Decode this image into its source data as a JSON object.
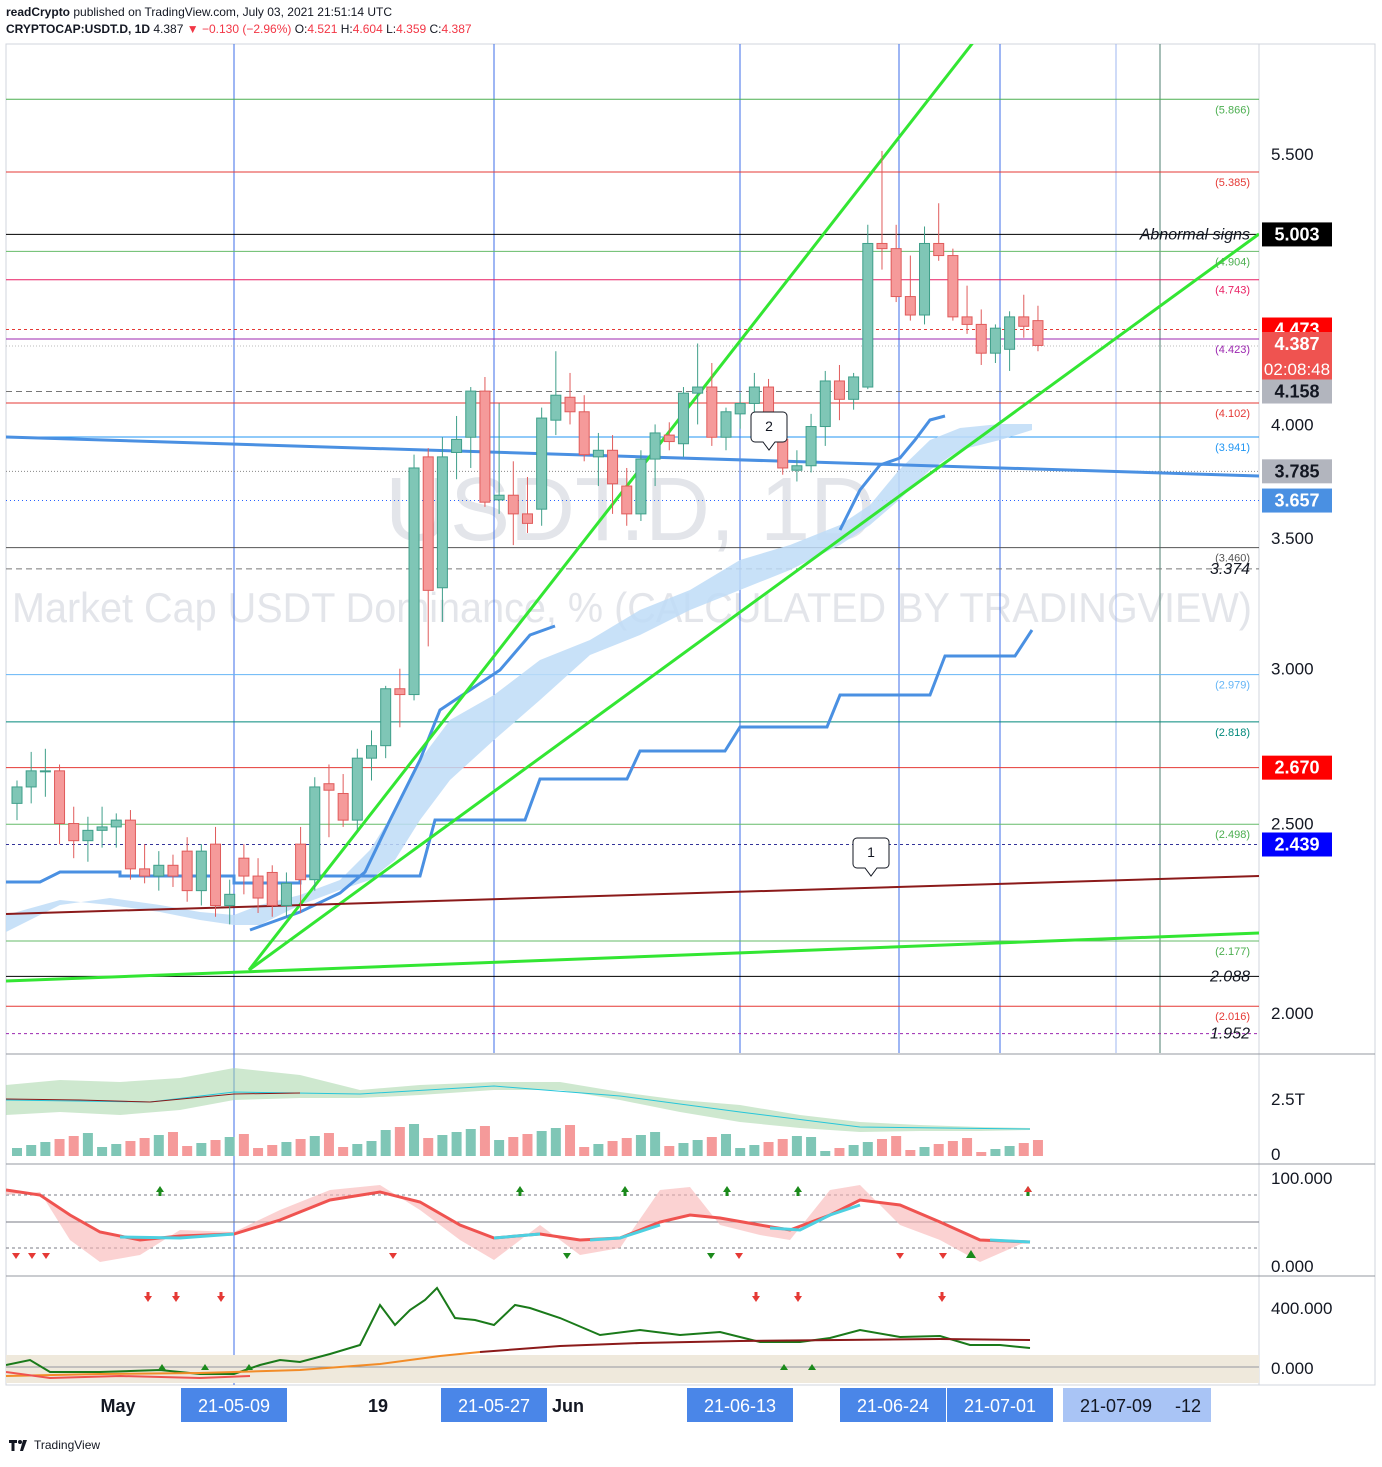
{
  "header": {
    "publisher": "readCrypto",
    "published_text": "published on TradingView.com, July 03, 2021 21:51:14 UTC",
    "symbol": "CRYPTOCAP:USDT.D, 1D",
    "last": "4.387",
    "change": "▼ −0.130 (−2.96%)",
    "ohlc": {
      "o_label": "O:",
      "o": "4.521",
      "h_label": "H:",
      "h": "4.604",
      "l_label": "L:",
      "l": "4.359",
      "c_label": "C:",
      "c": "4.387"
    }
  },
  "watermark": {
    "symbol": "USDT.D, 1D",
    "description": "Market Cap USDT Dominance, % (CALCULATED BY TRADINGVIEW)"
  },
  "footer": {
    "brand": "TradingView"
  },
  "colors": {
    "up": "#7fc6b6",
    "down": "#f59a9a",
    "cloud": "#bedcf7",
    "baseline": "#4a90e2",
    "trend_green": "#33e633",
    "trend_darkred": "#8b1a1a",
    "axis_badge_red": "#ff0000",
    "axis_badge_blue": "#0000ff"
  },
  "chart_data": {
    "type": "candlestick",
    "price_axis": {
      "scale": "log",
      "ticks": [
        "5.500",
        "5.003",
        "4.000",
        "3.500",
        "3.000",
        "2.500",
        "2.000"
      ],
      "ylim": [
        1.85,
        6.2
      ]
    },
    "x_axis": {
      "labels": [
        "May",
        "21-05-09",
        "19",
        "21-05-27",
        "Jun",
        "21-06-13",
        "21-06-24",
        "21-07-01",
        "21-07-09",
        "-12"
      ],
      "highlighted": [
        "21-05-09",
        "21-05-27",
        "21-06-13",
        "21-06-24",
        "21-07-01"
      ],
      "light_highlighted": [
        "21-07-09",
        "-12"
      ]
    },
    "price_badges": [
      {
        "label": "5.003",
        "value": 5.003,
        "bg": "#000000",
        "fg": "#ffffff"
      },
      {
        "label": "4.473",
        "value": 4.473,
        "bg": "#ff0000",
        "fg": "#ffffff"
      },
      {
        "label": "4.387",
        "value": 4.387,
        "bg": "#ef5350",
        "fg": "#ffffff",
        "sub": "02:08:48"
      },
      {
        "label": "4.158",
        "value": 4.158,
        "bg": "#b2b5be",
        "fg": "#131722"
      },
      {
        "label": "3.785",
        "value": 3.785,
        "bg": "#b2b5be",
        "fg": "#131722"
      },
      {
        "label": "3.657",
        "value": 3.657,
        "bg": "#4a90e2",
        "fg": "#ffffff"
      },
      {
        "label": "2.670",
        "value": 2.67,
        "bg": "#ff0000",
        "fg": "#ffffff"
      },
      {
        "label": "2.439",
        "value": 2.439,
        "bg": "#0000ff",
        "fg": "#ffffff"
      }
    ],
    "level_labels": [
      {
        "label": "(5.866)",
        "value": 5.866,
        "color": "#4caf50"
      },
      {
        "label": "(5.385)",
        "value": 5.385,
        "color": "#e53935"
      },
      {
        "label": "(4.904)",
        "value": 4.904,
        "color": "#4caf50"
      },
      {
        "label": "(4.743)",
        "value": 4.743,
        "color": "#e91e63"
      },
      {
        "label": "(4.423)",
        "value": 4.423,
        "color": "#9c27b0"
      },
      {
        "label": "(4.102)",
        "value": 4.102,
        "color": "#e53935"
      },
      {
        "label": "(3.941)",
        "value": 3.941,
        "color": "#2196f3"
      },
      {
        "label": "(3.460)",
        "value": 3.46,
        "color": "#555555"
      },
      {
        "label": "(2.979)",
        "value": 2.979,
        "color": "#64b5f6"
      },
      {
        "label": "(2.818)",
        "value": 2.818,
        "color": "#00897b"
      },
      {
        "label": "(2.498)",
        "value": 2.498,
        "color": "#4caf50"
      },
      {
        "label": "(2.177)",
        "value": 2.177,
        "color": "#4caf50"
      },
      {
        "label": "(2.016)",
        "value": 2.016,
        "color": "#e53935"
      }
    ],
    "italic_levels": [
      {
        "label": "3.374",
        "value": 3.374
      },
      {
        "label": "2.088",
        "value": 2.088
      },
      {
        "label": "1.952",
        "value": 1.952
      }
    ],
    "annotation_text": "Abnormal signs",
    "callouts": [
      "2",
      "1"
    ],
    "candles": [
      [
        2.56,
        2.63,
        2.51,
        2.61
      ],
      [
        2.61,
        2.72,
        2.56,
        2.66
      ],
      [
        2.66,
        2.73,
        2.58,
        2.66
      ],
      [
        2.66,
        2.68,
        2.44,
        2.5
      ],
      [
        2.5,
        2.55,
        2.4,
        2.45
      ],
      [
        2.45,
        2.52,
        2.39,
        2.48
      ],
      [
        2.48,
        2.55,
        2.43,
        2.49
      ],
      [
        2.49,
        2.53,
        2.43,
        2.51
      ],
      [
        2.51,
        2.54,
        2.34,
        2.37
      ],
      [
        2.37,
        2.44,
        2.33,
        2.35
      ],
      [
        2.35,
        2.42,
        2.31,
        2.38
      ],
      [
        2.38,
        2.41,
        2.32,
        2.35
      ],
      [
        2.42,
        2.46,
        2.28,
        2.31
      ],
      [
        2.31,
        2.44,
        2.27,
        2.42
      ],
      [
        2.44,
        2.49,
        2.24,
        2.27
      ],
      [
        2.27,
        2.34,
        2.22,
        2.3
      ],
      [
        2.4,
        2.44,
        2.3,
        2.35
      ],
      [
        2.35,
        2.4,
        2.25,
        2.29
      ],
      [
        2.36,
        2.38,
        2.24,
        2.27
      ],
      [
        2.27,
        2.36,
        2.24,
        2.33
      ],
      [
        2.44,
        2.49,
        2.25,
        2.34
      ],
      [
        2.34,
        2.64,
        2.31,
        2.61
      ],
      [
        2.62,
        2.68,
        2.46,
        2.6
      ],
      [
        2.59,
        2.65,
        2.49,
        2.51
      ],
      [
        2.51,
        2.73,
        2.48,
        2.7
      ],
      [
        2.7,
        2.79,
        2.63,
        2.74
      ],
      [
        2.74,
        2.94,
        2.7,
        2.93
      ],
      [
        2.93,
        3.0,
        2.8,
        2.91
      ],
      [
        2.91,
        3.86,
        2.89,
        3.8
      ],
      [
        3.85,
        3.89,
        3.08,
        3.29
      ],
      [
        3.3,
        3.94,
        3.17,
        3.85
      ],
      [
        3.87,
        4.04,
        3.75,
        3.93
      ],
      [
        3.94,
        4.18,
        3.8,
        4.16
      ],
      [
        4.16,
        4.23,
        3.63,
        3.65
      ],
      [
        3.66,
        4.1,
        3.6,
        3.68
      ],
      [
        3.68,
        3.83,
        3.47,
        3.6
      ],
      [
        3.6,
        3.76,
        3.52,
        3.56
      ],
      [
        3.62,
        4.08,
        3.55,
        4.03
      ],
      [
        4.02,
        4.36,
        3.95,
        4.14
      ],
      [
        4.13,
        4.25,
        4.0,
        4.06
      ],
      [
        4.06,
        4.14,
        3.83,
        3.86
      ],
      [
        3.85,
        3.96,
        3.72,
        3.88
      ],
      [
        3.88,
        3.95,
        3.6,
        3.73
      ],
      [
        3.72,
        3.8,
        3.55,
        3.6
      ],
      [
        3.6,
        3.88,
        3.57,
        3.84
      ],
      [
        3.84,
        4.0,
        3.72,
        3.96
      ],
      [
        3.95,
        4.01,
        3.88,
        3.92
      ],
      [
        3.91,
        4.18,
        3.85,
        4.15
      ],
      [
        4.15,
        4.4,
        4.0,
        4.18
      ],
      [
        4.18,
        4.3,
        3.9,
        3.94
      ],
      [
        3.94,
        4.08,
        3.88,
        4.06
      ],
      [
        4.05,
        4.15,
        3.98,
        4.1
      ],
      [
        4.1,
        4.25,
        4.0,
        4.18
      ],
      [
        4.18,
        4.22,
        3.92,
        3.93
      ],
      [
        3.93,
        3.96,
        3.77,
        3.8
      ],
      [
        3.79,
        3.88,
        3.74,
        3.81
      ],
      [
        3.81,
        4.05,
        3.78,
        3.99
      ],
      [
        3.99,
        4.26,
        3.9,
        4.21
      ],
      [
        4.21,
        4.29,
        4.02,
        4.12
      ],
      [
        4.12,
        4.25,
        4.07,
        4.23
      ],
      [
        4.18,
        5.06,
        4.17,
        4.95
      ],
      [
        4.95,
        5.52,
        4.8,
        4.92
      ],
      [
        4.92,
        5.06,
        4.62,
        4.65
      ],
      [
        4.65,
        4.88,
        4.52,
        4.55
      ],
      [
        4.55,
        5.05,
        4.5,
        4.95
      ],
      [
        4.95,
        5.19,
        4.85,
        4.88
      ],
      [
        4.88,
        4.92,
        4.52,
        4.54
      ],
      [
        4.54,
        4.71,
        4.45,
        4.5
      ],
      [
        4.5,
        4.58,
        4.29,
        4.35
      ],
      [
        4.35,
        4.5,
        4.3,
        4.48
      ],
      [
        4.37,
        4.57,
        4.26,
        4.54
      ],
      [
        4.54,
        4.66,
        4.43,
        4.49
      ],
      [
        4.52,
        4.6,
        4.36,
        4.39
      ]
    ],
    "indicators": {
      "volume": {
        "label_top": "2.5T",
        "label_zero": "0"
      },
      "oscillator": {
        "ticks": [
          "100.000",
          "0.000"
        ]
      },
      "momentum": {
        "ticks": [
          "400.000",
          "0.000"
        ]
      }
    }
  }
}
